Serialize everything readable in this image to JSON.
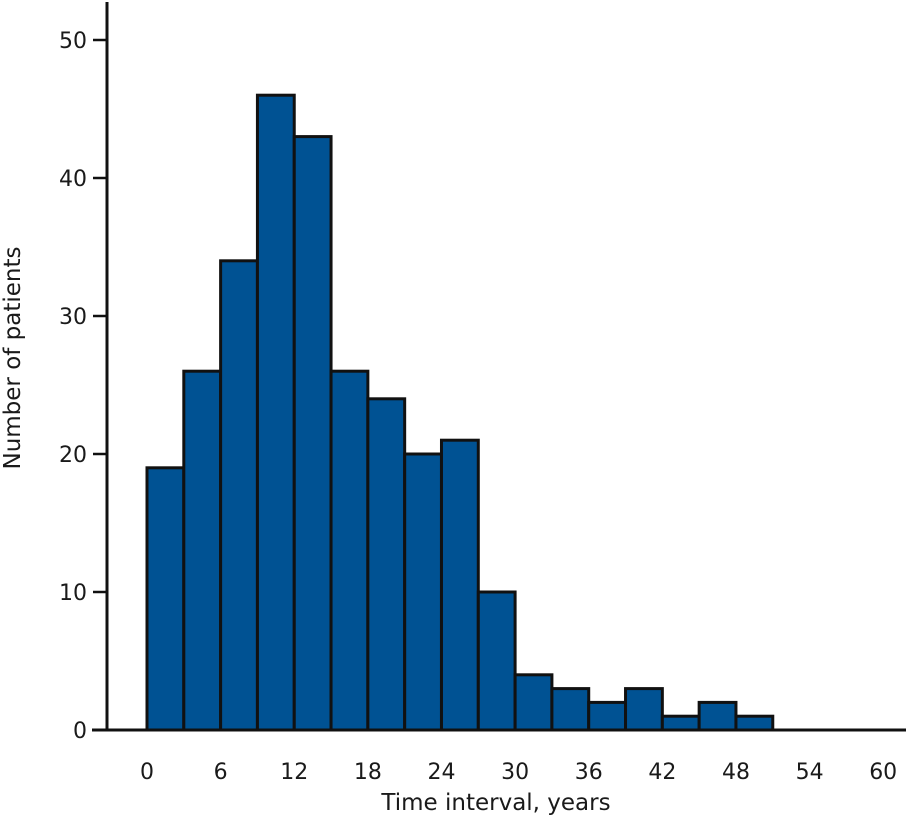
{
  "chart_data": {
    "type": "bar",
    "bin_width": 3,
    "bin_starts": [
      0,
      3,
      6,
      9,
      12,
      15,
      18,
      21,
      24,
      27,
      30,
      33,
      36,
      39,
      42,
      45,
      48
    ],
    "values": [
      19,
      26,
      34,
      46,
      43,
      26,
      24,
      20,
      21,
      10,
      4,
      3,
      2,
      3,
      1,
      2,
      1
    ],
    "xlabel": "Time interval, years",
    "ylabel": "Number of patients",
    "xlim": [
      -3.5,
      63
    ],
    "ylim": [
      0,
      50
    ],
    "xticks": [
      0,
      6,
      12,
      18,
      24,
      30,
      36,
      42,
      48,
      54,
      60
    ],
    "yticks": [
      0,
      10,
      20,
      30,
      40,
      50
    ],
    "bar_color": "#005293",
    "edge_color": "#111111",
    "grid": false
  }
}
